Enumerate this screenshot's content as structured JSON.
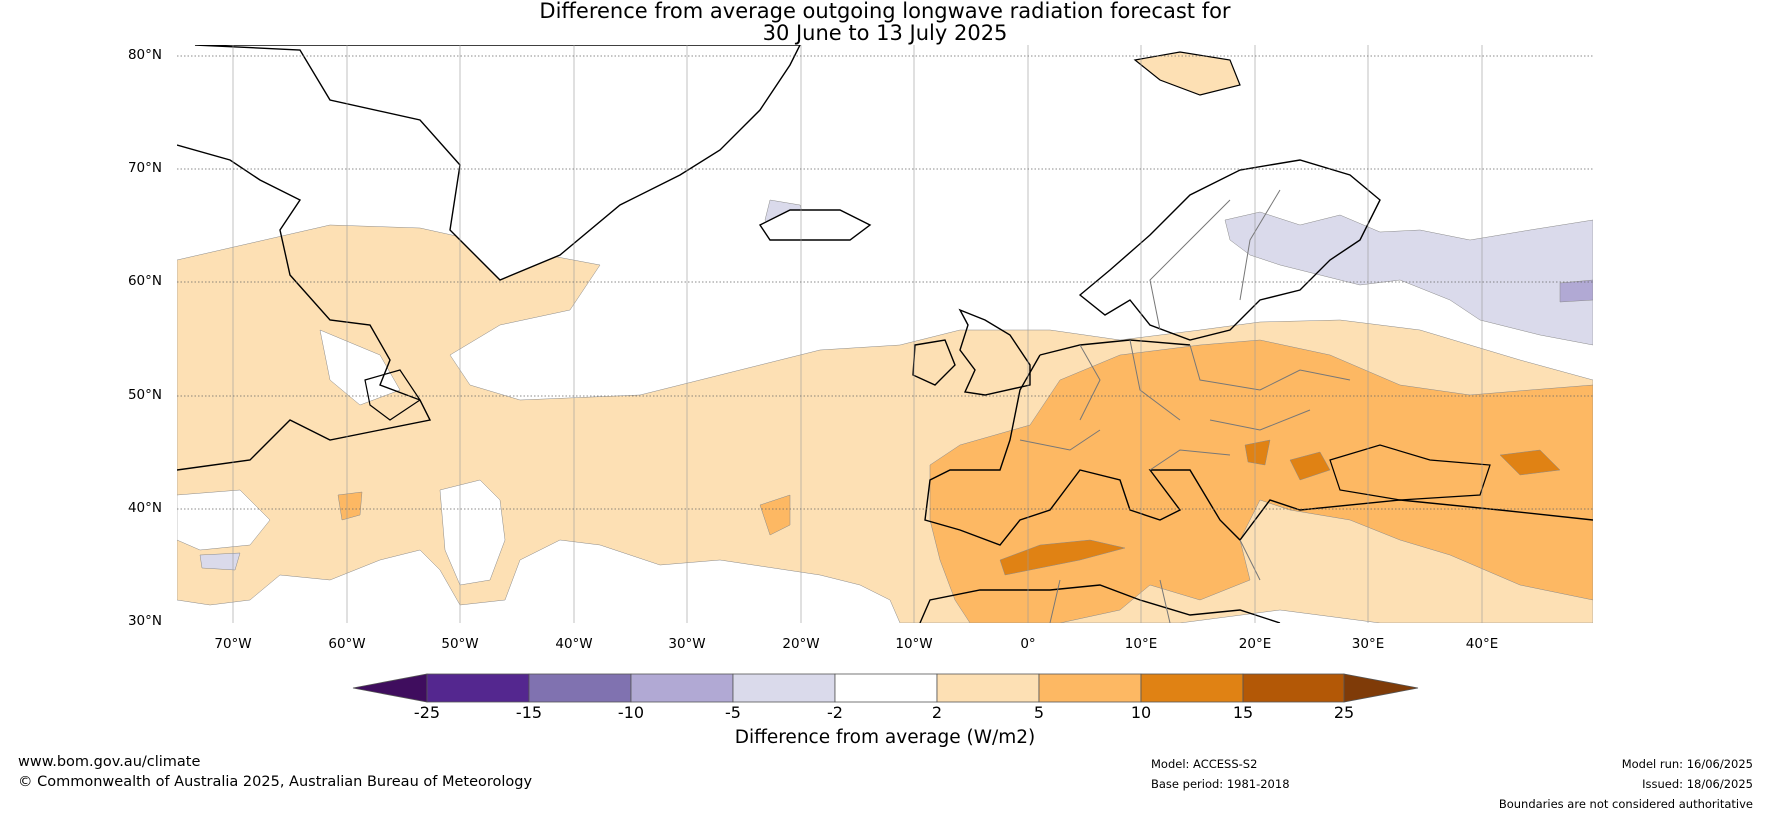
{
  "title": {
    "line1": "Difference from average outgoing longwave radiation forecast for",
    "line2": "30 June to 13 July 2025"
  },
  "axes": {
    "lat_labels": [
      "80°N",
      "70°N",
      "60°N",
      "50°N",
      "40°N",
      "30°N"
    ],
    "lon_labels": [
      "70°W",
      "60°W",
      "50°W",
      "40°W",
      "30°W",
      "20°W",
      "10°W",
      "0°",
      "10°E",
      "20°E",
      "30°E",
      "40°E"
    ],
    "lat_range": [
      30,
      81
    ],
    "lon_range": [
      -75,
      50
    ],
    "gridlines": true
  },
  "colorbar": {
    "ticks": [
      "-25",
      "-15",
      "-10",
      "-5",
      "-2",
      "2",
      "5",
      "10",
      "15",
      "25"
    ],
    "colors": [
      "#3f0d5e",
      "#54278f",
      "#8072b0",
      "#b1a9d4",
      "#dadaeb",
      "#ffffff",
      "#fde0b4",
      "#fdb863",
      "#e08214",
      "#b35806",
      "#7f3b08"
    ],
    "label": "Difference from average (W/m2)"
  },
  "footer": {
    "url": "www.bom.gov.au/climate",
    "copyright": "© Commonwealth of Australia 2025, Australian Bureau of Meteorology",
    "model": "Model: ACCESS-S2",
    "base_period": "Base period: 1981-2018",
    "model_run": "Model run: 16/06/2025",
    "issued": "Issued: 18/06/2025",
    "disclaimer": "Boundaries are not considered authoritative"
  },
  "map_data": {
    "type": "contour-map",
    "region": "North Atlantic and Europe",
    "anomaly_regions": [
      {
        "name": "Atlantic and western Europe band",
        "category": "2 to 5"
      },
      {
        "name": "Central and southern Europe, Mediterranean, North Africa",
        "category": "5 to 10"
      },
      {
        "name": "Balkans, Black Sea, Sahara",
        "category": "10 to 15"
      },
      {
        "name": "Scandinavia and northwest Russia",
        "category": "-5 to -2"
      },
      {
        "name": "Eastern Europe patch",
        "category": "-10 to -5"
      }
    ]
  }
}
